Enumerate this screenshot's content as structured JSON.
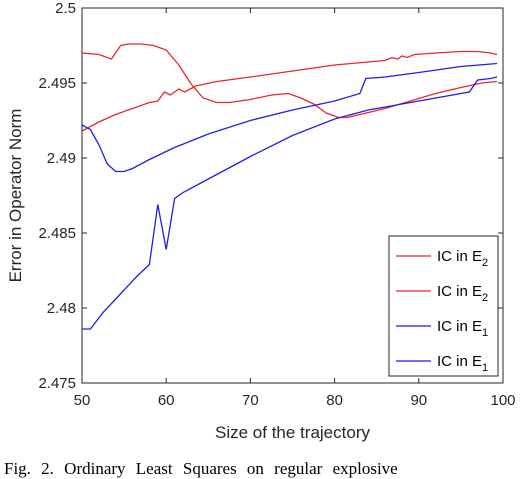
{
  "chart_data": {
    "type": "line",
    "title": "",
    "xlabel": "Size of the trajectory",
    "ylabel": "Error in Operator Norm",
    "xlim": [
      50,
      100
    ],
    "ylim": [
      2.475,
      2.5
    ],
    "xticks": [
      "50",
      "60",
      "70",
      "80",
      "90",
      "100"
    ],
    "yticks": [
      "2.5",
      "2.495",
      "2.49",
      "2.485",
      "2.48",
      "2.475"
    ],
    "grid": false,
    "legend_position": "bottom-right",
    "series": [
      {
        "legend_base": "IC in E",
        "legend_sub": "2",
        "color": "#e8282b",
        "points": [
          [
            50,
            2.4918
          ],
          [
            52,
            2.4924
          ],
          [
            54,
            2.4929
          ],
          [
            56,
            2.4933
          ],
          [
            58,
            2.4937
          ],
          [
            59,
            2.4938
          ],
          [
            59.8,
            2.4944
          ],
          [
            60.5,
            2.4942
          ],
          [
            61.5,
            2.4946
          ],
          [
            62.2,
            2.4944
          ],
          [
            63.5,
            2.4948
          ],
          [
            66,
            2.4951
          ],
          [
            70,
            2.4954
          ],
          [
            75,
            2.4958
          ],
          [
            80,
            2.4962
          ],
          [
            84,
            2.4964
          ],
          [
            86,
            2.4965
          ],
          [
            86.8,
            2.4967
          ],
          [
            87.5,
            2.4966
          ],
          [
            88,
            2.4968
          ],
          [
            88.6,
            2.4967
          ],
          [
            89.5,
            2.4969
          ],
          [
            92,
            2.497
          ],
          [
            95,
            2.4971
          ],
          [
            97,
            2.4971
          ],
          [
            98.5,
            2.497
          ],
          [
            99.3,
            2.4969
          ]
        ]
      },
      {
        "legend_base": "IC in E",
        "legend_sub": "2",
        "color": "#e8282b",
        "points": [
          [
            50,
            2.497
          ],
          [
            52,
            2.4969
          ],
          [
            53.5,
            2.4966
          ],
          [
            54.6,
            2.4975
          ],
          [
            55.5,
            2.4976
          ],
          [
            57,
            2.4976
          ],
          [
            58.5,
            2.4975
          ],
          [
            60,
            2.4972
          ],
          [
            61.5,
            2.4962
          ],
          [
            63,
            2.4949
          ],
          [
            64.4,
            2.494
          ],
          [
            66,
            2.4937
          ],
          [
            67.5,
            2.4937
          ],
          [
            70,
            2.4939
          ],
          [
            72.5,
            2.4942
          ],
          [
            74.5,
            2.4943
          ],
          [
            76,
            2.494
          ],
          [
            77.5,
            2.4936
          ],
          [
            79,
            2.493
          ],
          [
            80.5,
            2.4927
          ],
          [
            81.5,
            2.4927
          ],
          [
            83,
            2.4929
          ],
          [
            86,
            2.4933
          ],
          [
            89,
            2.4938
          ],
          [
            92,
            2.4943
          ],
          [
            95,
            2.4947
          ],
          [
            97.5,
            2.495
          ],
          [
            99.3,
            2.4951
          ]
        ]
      },
      {
        "legend_base": "IC in E",
        "legend_sub": "1",
        "color": "#1f1fe6",
        "points": [
          [
            50,
            2.4922
          ],
          [
            51,
            2.4919
          ],
          [
            52,
            2.4909
          ],
          [
            53,
            2.4896
          ],
          [
            54,
            2.4891
          ],
          [
            55,
            2.4891
          ],
          [
            56,
            2.4893
          ],
          [
            58,
            2.4899
          ],
          [
            61,
            2.4907
          ],
          [
            65,
            2.4916
          ],
          [
            70,
            2.4925
          ],
          [
            75,
            2.4932
          ],
          [
            80,
            2.4938
          ],
          [
            83,
            2.4943
          ],
          [
            83.7,
            2.4953
          ],
          [
            86,
            2.4954
          ],
          [
            90,
            2.4957
          ],
          [
            95,
            2.4961
          ],
          [
            99.3,
            2.4963
          ]
        ]
      },
      {
        "legend_base": "IC in E",
        "legend_sub": "1",
        "color": "#1f1fe6",
        "points": [
          [
            50,
            2.4786
          ],
          [
            51,
            2.4786
          ],
          [
            52.5,
            2.4797
          ],
          [
            54.5,
            2.4809
          ],
          [
            56.5,
            2.4821
          ],
          [
            58,
            2.4829
          ],
          [
            59,
            2.4869
          ],
          [
            60,
            2.4839
          ],
          [
            61,
            2.4873
          ],
          [
            62,
            2.4877
          ],
          [
            65,
            2.4886
          ],
          [
            70,
            2.4901
          ],
          [
            75,
            2.4915
          ],
          [
            80,
            2.4926
          ],
          [
            84,
            2.4932
          ],
          [
            88,
            2.4936
          ],
          [
            92,
            2.494
          ],
          [
            96,
            2.4944
          ],
          [
            97,
            2.4952
          ],
          [
            98.5,
            2.4953
          ],
          [
            99.3,
            2.4954
          ]
        ]
      }
    ]
  },
  "caption": "Fig. 2.   Ordinary Least Squares on regular explosive"
}
